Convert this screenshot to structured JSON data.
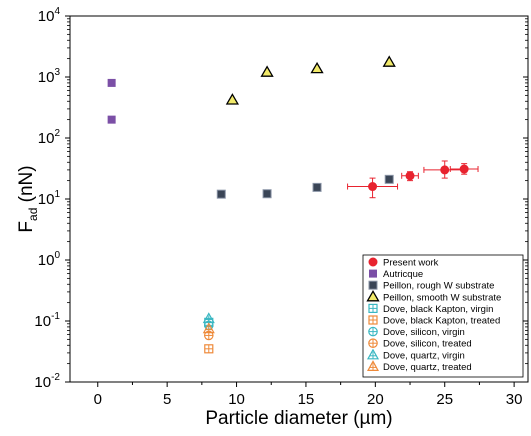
{
  "chart_data": {
    "type": "scatter",
    "xlabel": "Particle diameter (µm)",
    "ylabel_main": "F",
    "ylabel_sub": "ad",
    "ylabel_unit": " (nN)",
    "xlim": [
      -2,
      31
    ],
    "ylim_log10": [
      -2,
      4
    ],
    "y_scale": "log",
    "x_ticks": [
      0,
      5,
      10,
      15,
      20,
      25,
      30
    ],
    "y_ticks": [
      {
        "exp": -2,
        "base": "10",
        "sup": "-2"
      },
      {
        "exp": -1,
        "base": "10",
        "sup": "-1"
      },
      {
        "exp": 0,
        "base": "10",
        "sup": "0"
      },
      {
        "exp": 1,
        "base": "10",
        "sup": "1"
      },
      {
        "exp": 2,
        "base": "10",
        "sup": "2"
      },
      {
        "exp": 3,
        "base": "10",
        "sup": "3"
      },
      {
        "exp": 4,
        "base": "10",
        "sup": "4"
      }
    ],
    "legend_position": "bottom-right",
    "series": [
      {
        "name": "Present work",
        "marker": "circle",
        "color": "#e8232f",
        "points": [
          {
            "x": 19.8,
            "y": 16,
            "xerr": 1.8,
            "ylo": 10.5,
            "yhi": 22
          },
          {
            "x": 22.5,
            "y": 24,
            "xerr": 0.6,
            "ylo": 20,
            "yhi": 28
          },
          {
            "x": 25.0,
            "y": 30,
            "xerr": 1.5,
            "ylo": 22,
            "yhi": 42
          },
          {
            "x": 26.4,
            "y": 31,
            "xerr": 1.0,
            "ylo": 25.5,
            "yhi": 38
          }
        ]
      },
      {
        "name": "Autricque",
        "marker": "square",
        "color": "#7b4fa6",
        "points": [
          {
            "x": 1.0,
            "y": 800
          },
          {
            "x": 1.0,
            "y": 200
          }
        ]
      },
      {
        "name": "Peillon, rough W substrate",
        "marker": "square-outline",
        "color": "#3a4556",
        "points": [
          {
            "x": 8.9,
            "y": 12
          },
          {
            "x": 12.2,
            "y": 12.2
          },
          {
            "x": 15.8,
            "y": 15.5
          },
          {
            "x": 21.0,
            "y": 21
          }
        ]
      },
      {
        "name": "Peillon, smooth W substrate",
        "marker": "triangle",
        "color": "#f2ea6a",
        "points": [
          {
            "x": 9.7,
            "y": 420
          },
          {
            "x": 12.2,
            "y": 1200
          },
          {
            "x": 15.8,
            "y": 1370
          },
          {
            "x": 21.0,
            "y": 1750
          }
        ]
      },
      {
        "name": "Dove, black Kapton, virgin",
        "marker": "square-plus",
        "color": "#3ab7c2",
        "points": [
          {
            "x": 8.0,
            "y": 0.095
          }
        ]
      },
      {
        "name": "Dove, black Kapton, treated",
        "marker": "square-plus",
        "color": "#ee8a3a",
        "points": [
          {
            "x": 8.0,
            "y": 0.035
          }
        ]
      },
      {
        "name": "Dove, silicon, virgin",
        "marker": "circle-plus",
        "color": "#3ab7c2",
        "points": [
          {
            "x": 8.0,
            "y": 0.085
          }
        ]
      },
      {
        "name": "Dove, silicon, treated",
        "marker": "circle-plus",
        "color": "#ee8a3a",
        "points": [
          {
            "x": 8.0,
            "y": 0.058
          }
        ]
      },
      {
        "name": "Dove, quartz, virgin",
        "marker": "triangle-plus",
        "color": "#3ab7c2",
        "points": [
          {
            "x": 8.0,
            "y": 0.11
          }
        ]
      },
      {
        "name": "Dove, quartz, treated",
        "marker": "triangle-plus",
        "color": "#ee8a3a",
        "points": [
          {
            "x": 8.0,
            "y": 0.075
          }
        ]
      }
    ]
  }
}
